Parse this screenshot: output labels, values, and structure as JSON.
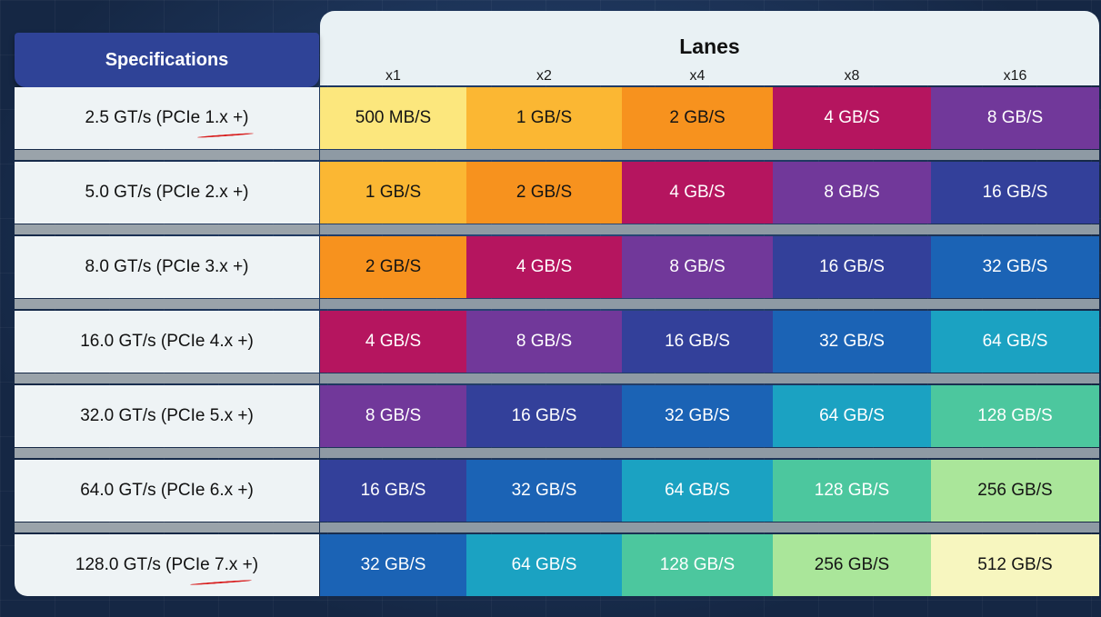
{
  "table": {
    "spec_header": "Specifications",
    "lanes_header": "Lanes",
    "lanes": [
      "x1",
      "x2",
      "x4",
      "x8",
      "x16"
    ],
    "rows": [
      {
        "spec": "2.5 GT/s (PCIe 1.x +)",
        "values": [
          "500 MB/S",
          "1 GB/S",
          "2 GB/S",
          "4 GB/S",
          "8 GB/S"
        ]
      },
      {
        "spec": "5.0 GT/s (PCIe 2.x +)",
        "values": [
          "1 GB/S",
          "2 GB/S",
          "4 GB/S",
          "8 GB/S",
          "16 GB/S"
        ]
      },
      {
        "spec": "8.0 GT/s (PCIe 3.x +)",
        "values": [
          "2 GB/S",
          "4 GB/S",
          "8 GB/S",
          "16 GB/S",
          "32 GB/S"
        ]
      },
      {
        "spec": "16.0 GT/s (PCIe 4.x +)",
        "values": [
          "4 GB/S",
          "8 GB/S",
          "16 GB/S",
          "32 GB/S",
          "64 GB/S"
        ]
      },
      {
        "spec": "32.0 GT/s (PCIe 5.x +)",
        "values": [
          "8 GB/S",
          "16 GB/S",
          "32 GB/S",
          "64 GB/S",
          "128 GB/S"
        ]
      },
      {
        "spec": "64.0 GT/s (PCIe 6.x +)",
        "values": [
          "16 GB/S",
          "32 GB/S",
          "64 GB/S",
          "128 GB/S",
          "256 GB/S"
        ]
      },
      {
        "spec": "128.0 GT/s (PCIe 7.x +)",
        "values": [
          "32 GB/S",
          "64 GB/S",
          "128 GB/S",
          "256 GB/S",
          "512 GB/S"
        ]
      }
    ]
  },
  "colors": {
    "500 MB/S": "#fce77d",
    "1 GB/S": "#fbb733",
    "2 GB/S": "#f7921e",
    "4 GB/S": "#b5155f",
    "8 GB/S": "#71389a",
    "16 GB/S": "#33409a",
    "32 GB/S": "#1b63b5",
    "64 GB/S": "#1ba2c2",
    "128 GB/S": "#4cc79e",
    "256 GB/S": "#aae69a",
    "512 GB/S": "#f7f6bf"
  },
  "dark_text_values": [
    "500 MB/S",
    "1 GB/S",
    "2 GB/S",
    "256 GB/S",
    "512 GB/S"
  ]
}
